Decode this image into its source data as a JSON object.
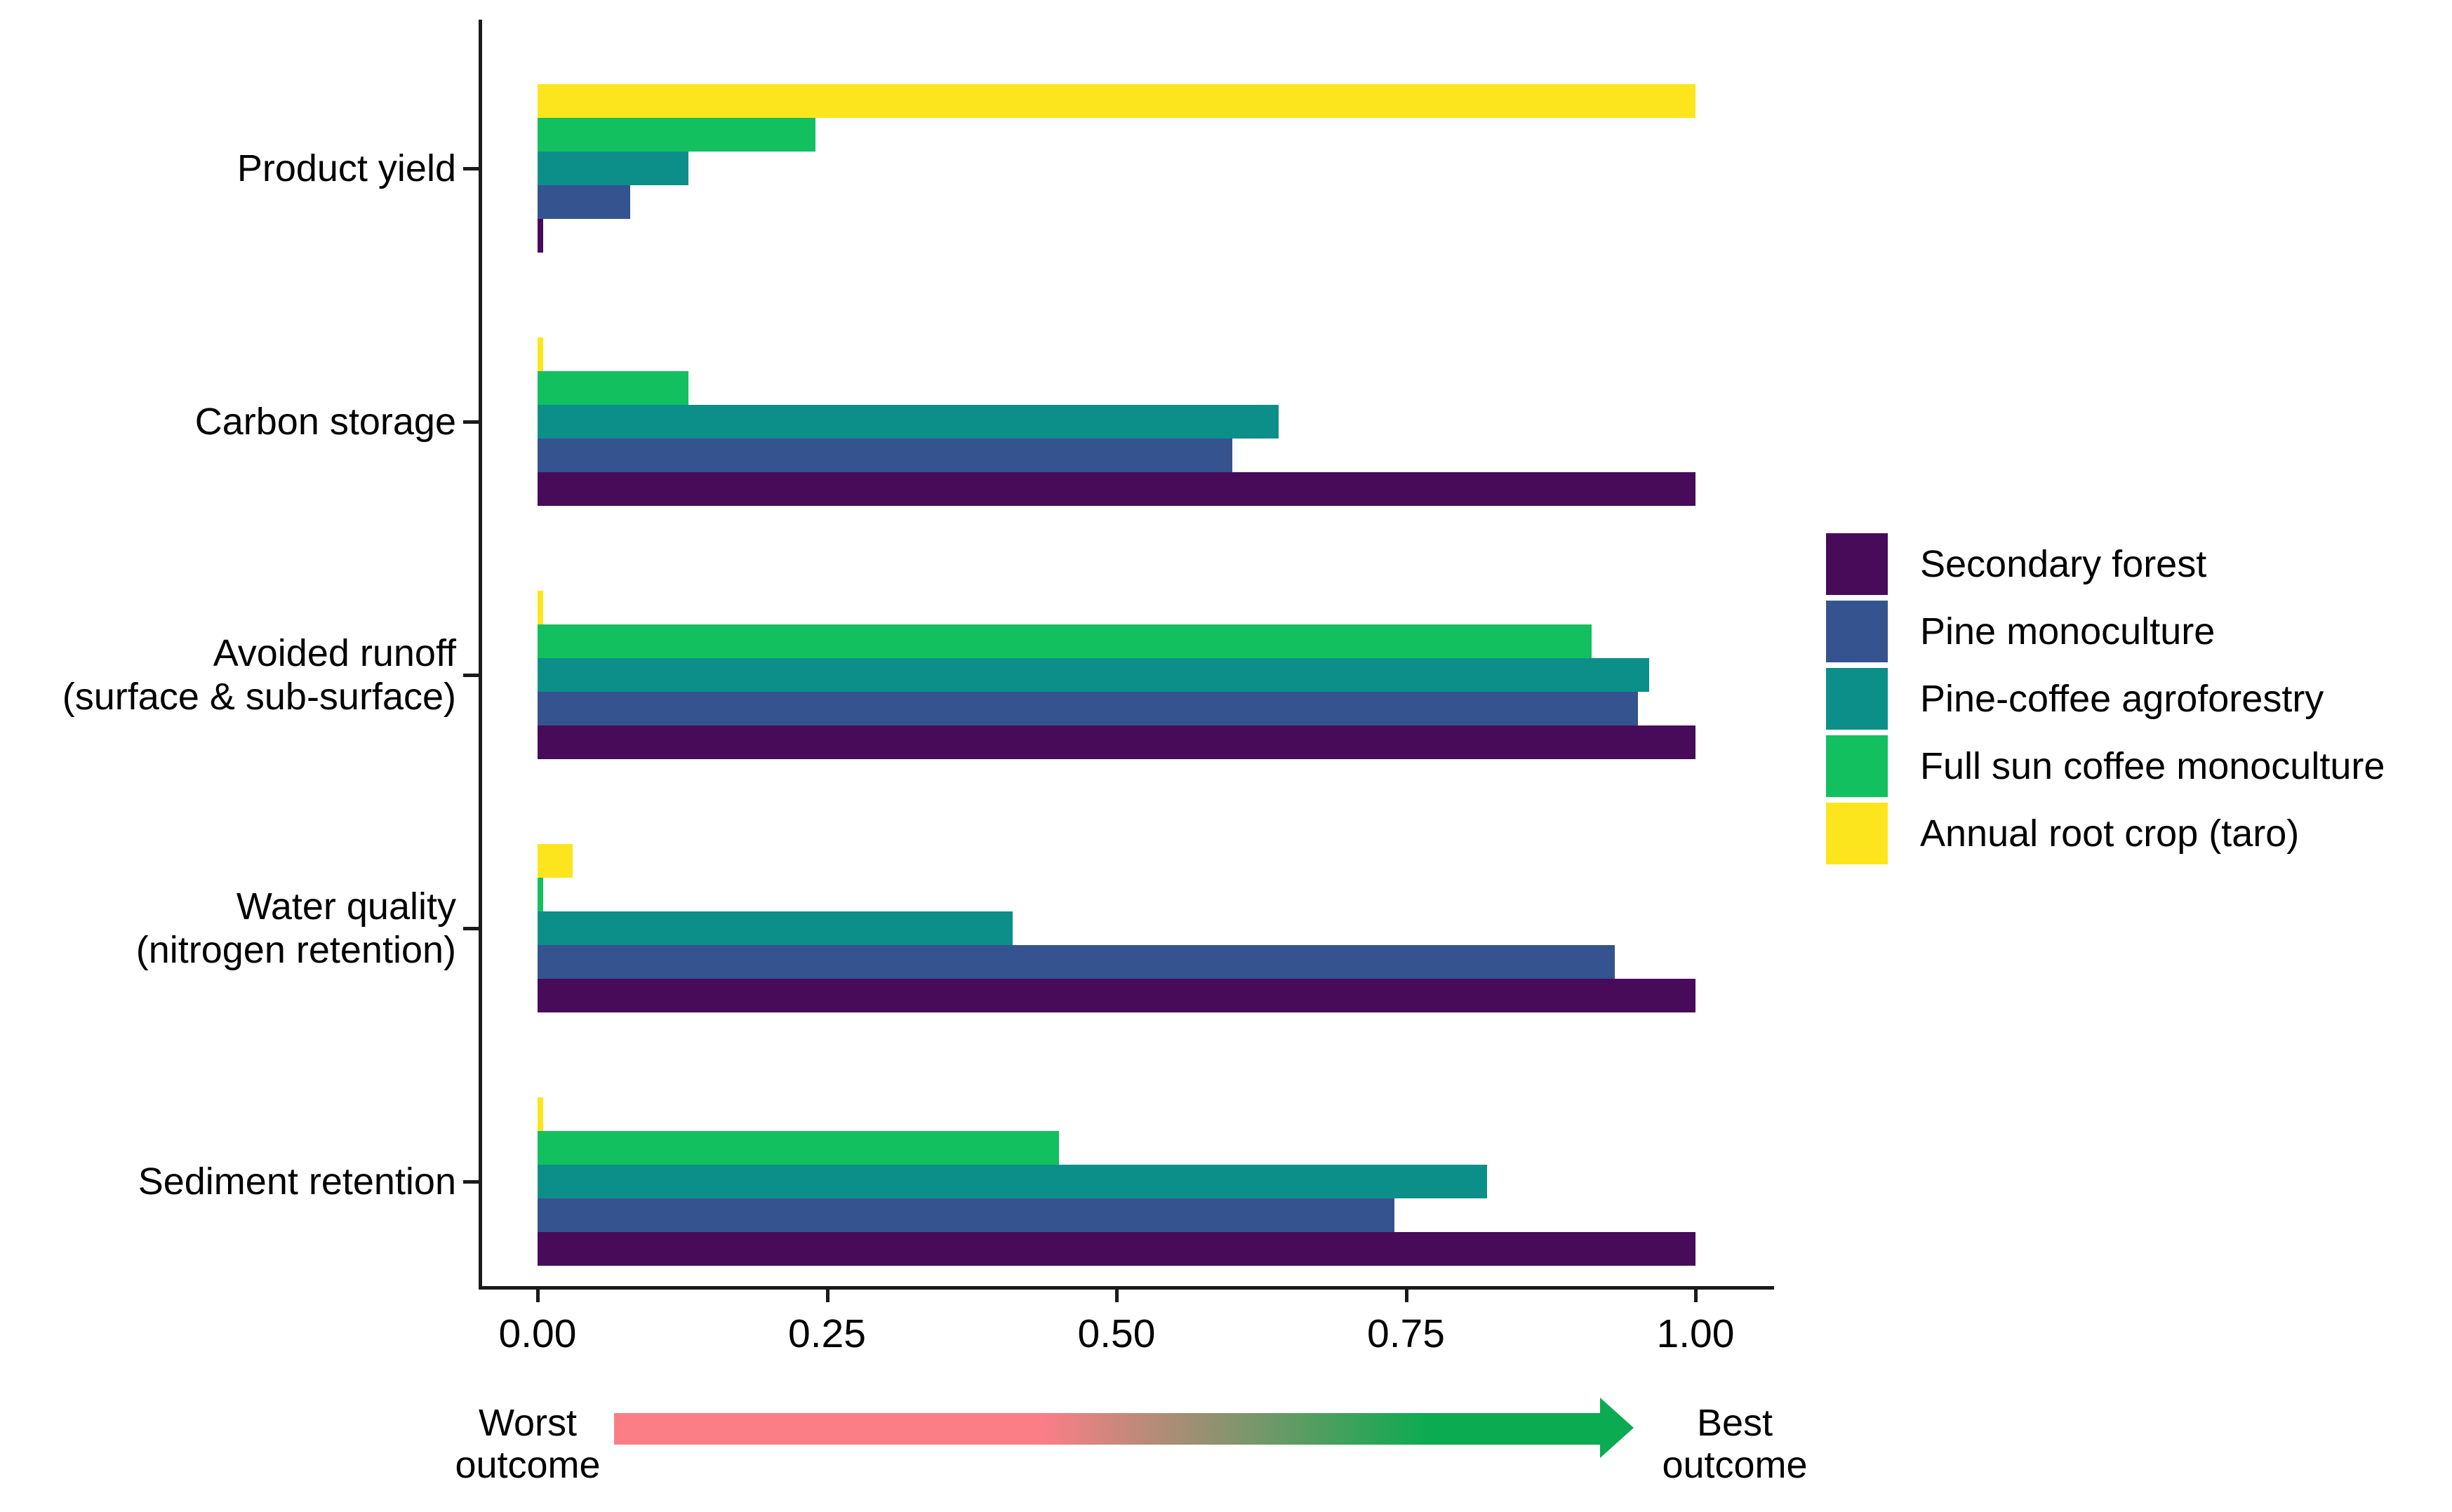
{
  "chart_data": {
    "type": "bar",
    "orientation": "horizontal",
    "title": "",
    "xlabel": "",
    "ylabel": "",
    "xlim": [
      0,
      1
    ],
    "grid": false,
    "legend_position": "right",
    "x_ticks": [
      {
        "label": "0.00",
        "value": 0
      },
      {
        "label": "0.25",
        "value": 0.25
      },
      {
        "label": "0.50",
        "value": 0.5
      },
      {
        "label": "0.75",
        "value": 0.75
      },
      {
        "label": "1.00",
        "value": 1.0
      }
    ],
    "categories": [
      {
        "lines": [
          "Product yield"
        ]
      },
      {
        "lines": [
          "Carbon storage"
        ]
      },
      {
        "lines": [
          "Avoided runoff",
          "(surface & sub-surface)"
        ]
      },
      {
        "lines": [
          "Water quality",
          "(nitrogen retention)"
        ]
      },
      {
        "lines": [
          "Sediment retention"
        ]
      }
    ],
    "series": [
      {
        "name": "Secondary forest",
        "color": "#470b59",
        "values": [
          0.005,
          1.0,
          1.0,
          1.0,
          1.0
        ]
      },
      {
        "name": "Pine monoculture",
        "color": "#35538f",
        "values": [
          0.08,
          0.6,
          0.95,
          0.93,
          0.74
        ]
      },
      {
        "name": "Pine-coffee agroforestry",
        "color": "#0d8f89",
        "values": [
          0.13,
          0.64,
          0.96,
          0.41,
          0.82
        ]
      },
      {
        "name": "Full sun coffee monoculture",
        "color": "#12c05f",
        "values": [
          0.24,
          0.13,
          0.91,
          0.005,
          0.45
        ]
      },
      {
        "name": "Annual root crop (taro)",
        "color": "#fce51c",
        "values": [
          1.0,
          0.005,
          0.005,
          0.03,
          0.005
        ]
      }
    ],
    "bar_stack_order_top_to_bottom": [
      4,
      3,
      2,
      1,
      0
    ]
  },
  "annotations": {
    "worst": {
      "line1": "Worst",
      "line2": "outcome"
    },
    "best": {
      "line1": "Best",
      "line2": "outcome"
    },
    "arrow": {
      "start_color": "#fb7e87",
      "end_color": "#0bab51"
    }
  }
}
